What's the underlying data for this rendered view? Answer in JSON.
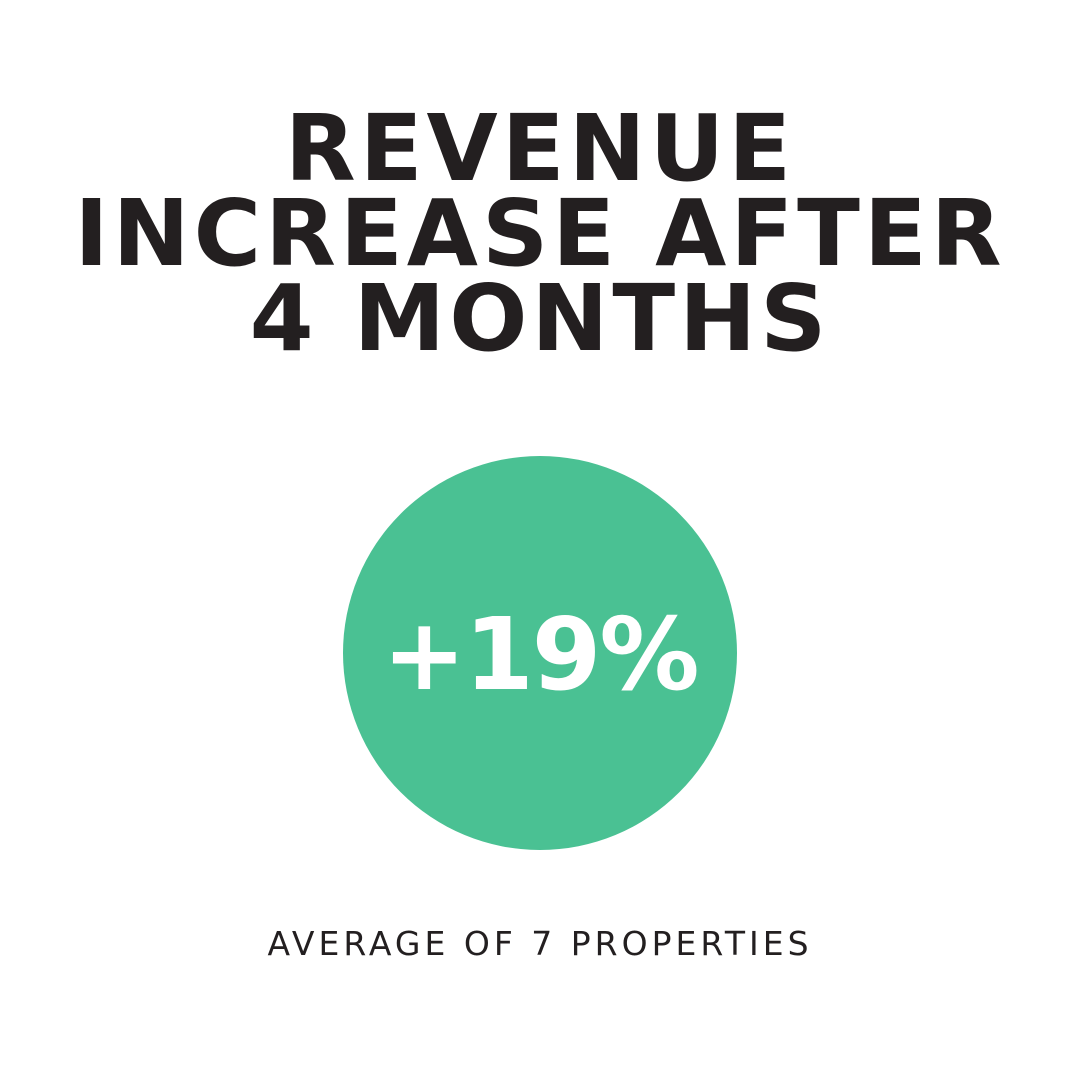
{
  "title": {
    "lines": [
      "REVENUE",
      "INCREASE AFTER",
      "4 MONTHS"
    ]
  },
  "stat": {
    "value": "+19%",
    "circle_color": "#4ac193"
  },
  "caption": "AVERAGE OF 7 PROPERTIES",
  "colors": {
    "text": "#231f20",
    "background": "#ffffff",
    "accent": "#4ac193"
  }
}
